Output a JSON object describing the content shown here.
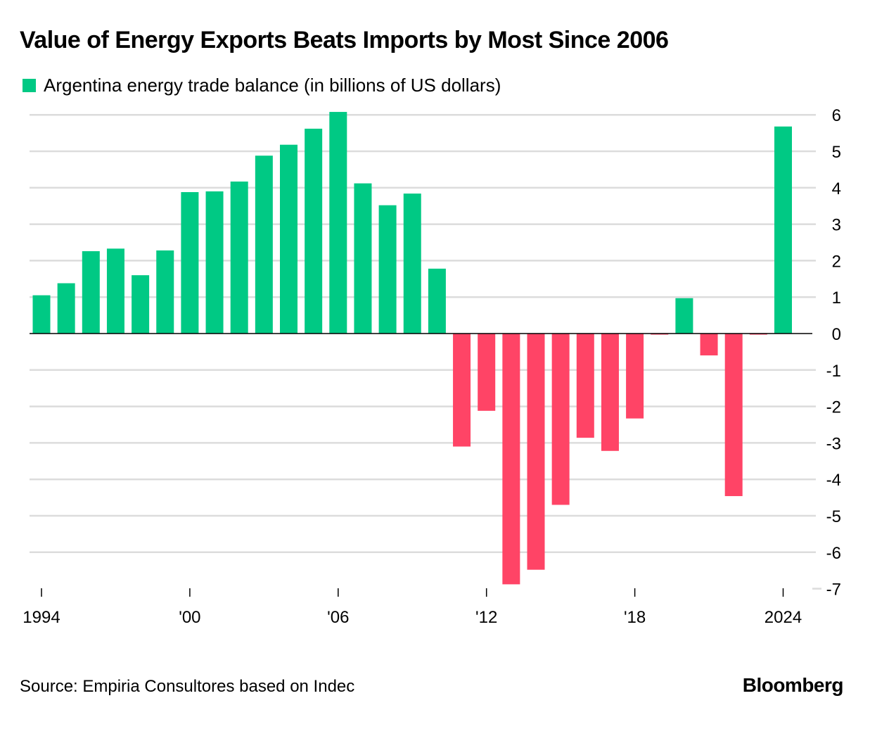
{
  "chart_data": {
    "type": "bar",
    "title": "Value of Energy Exports Beats Imports by Most Since 2006",
    "legend": [
      {
        "label": "Argentina energy trade balance (in billions of US dollars)",
        "color": "#00c984"
      }
    ],
    "x": [
      1994,
      1995,
      1996,
      1997,
      1998,
      1999,
      2000,
      2001,
      2002,
      2003,
      2004,
      2005,
      2006,
      2007,
      2008,
      2009,
      2010,
      2011,
      2012,
      2013,
      2014,
      2015,
      2016,
      2017,
      2018,
      2019,
      2020,
      2021,
      2022,
      2023,
      2024
    ],
    "values": [
      1.05,
      1.38,
      2.26,
      2.33,
      1.6,
      2.28,
      3.88,
      3.9,
      4.17,
      4.88,
      5.18,
      5.62,
      6.08,
      4.12,
      3.52,
      3.84,
      1.78,
      -3.1,
      -2.12,
      -6.88,
      -6.48,
      -4.7,
      -2.86,
      -3.22,
      -2.33,
      -0.03,
      0.97,
      -0.6,
      -4.46,
      -0.03,
      5.68
    ],
    "xtick_labels": [
      {
        "year": 1994,
        "label": "1994"
      },
      {
        "year": 2000,
        "label": "'00"
      },
      {
        "year": 2006,
        "label": "'06"
      },
      {
        "year": 2012,
        "label": "'12"
      },
      {
        "year": 2018,
        "label": "'18"
      },
      {
        "year": 2024,
        "label": "2024"
      }
    ],
    "yticks": [
      6,
      5,
      4,
      3,
      2,
      1,
      0,
      -1,
      -2,
      -3,
      -4,
      -5,
      -6,
      -7
    ],
    "ylim": [
      -7,
      6
    ],
    "positive_color": "#00c984",
    "negative_color": "#ff4466",
    "grid": true,
    "xlabel": "",
    "ylabel": "",
    "y_axis_side": "right"
  },
  "source": "Source: Empiria Consultores based on Indec",
  "brand": "Bloomberg"
}
